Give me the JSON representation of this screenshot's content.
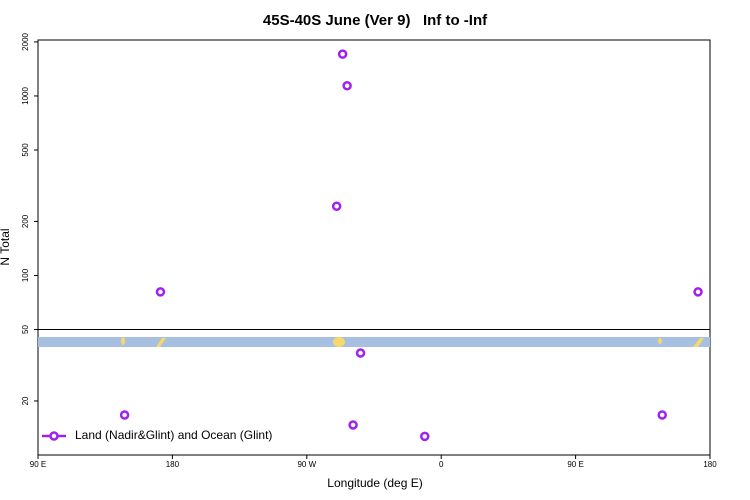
{
  "chart_data": {
    "type": "scatter",
    "title": "45S-40S June (Ver 9)   Inf to -Inf",
    "x_label": "Longitude (deg E)",
    "y_label": "N Total",
    "log_y": true,
    "xlim": [
      90,
      540
    ],
    "xticks": [
      {
        "value": 90,
        "label": "90 E"
      },
      180,
      {
        "value": 270,
        "label": "90 W"
      },
      {
        "value": 360,
        "label": "0"
      },
      {
        "value": 450,
        "label": "90 E"
      },
      {
        "value": 540,
        "label": "180"
      }
    ],
    "ylim": [
      10,
      2050
    ],
    "yticks": [
      20,
      50,
      100,
      200,
      500,
      1000,
      2000
    ],
    "reference_line": 50,
    "legend": "bottom-left",
    "series": [
      {
        "name": "Land (Nadir&Glint) and Ocean (Glint)",
        "color": "#a020f0",
        "x": [
          172,
          294,
          297,
          290,
          532,
          306,
          148,
          301,
          349,
          508
        ],
        "values": [
          81,
          1710,
          1140,
          243,
          81,
          37,
          16.7,
          14.7,
          12.7,
          16.7
        ]
      }
    ]
  }
}
